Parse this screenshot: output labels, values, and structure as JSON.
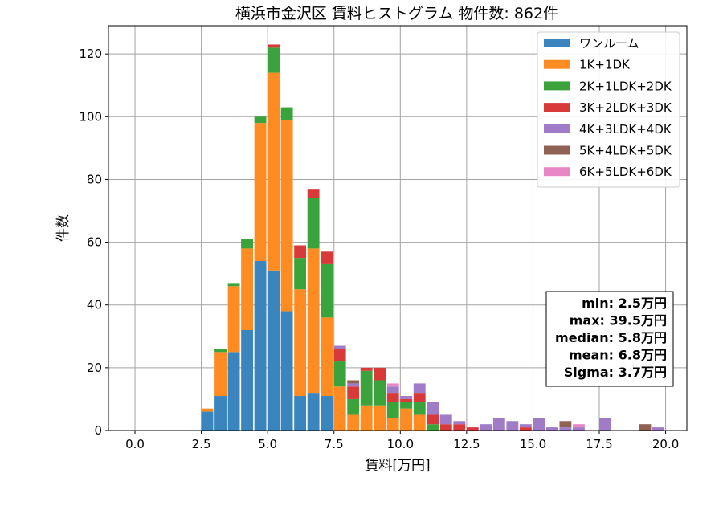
{
  "chart_data": {
    "type": "bar",
    "stacked": true,
    "title": "横浜市金沢区 賃料ヒストグラム 物件数: 862件",
    "xlabel": "賃料[万円]",
    "ylabel": "件数",
    "xlim": [
      -1.0,
      20.8
    ],
    "ylim": [
      0,
      129
    ],
    "xticks": [
      "0.0",
      "2.5",
      "5.0",
      "7.5",
      "10.0",
      "12.5",
      "15.0",
      "17.5",
      "20.0"
    ],
    "xtick_values": [
      0,
      2.5,
      5,
      7.5,
      10,
      12.5,
      15,
      17.5,
      20
    ],
    "yticks": [
      "0",
      "20",
      "40",
      "60",
      "80",
      "100",
      "120"
    ],
    "ytick_values": [
      0,
      20,
      40,
      60,
      80,
      100,
      120
    ],
    "grid": true,
    "legend_position": "top-right",
    "bin_width": 0.5,
    "x": [
      2.5,
      3.0,
      3.5,
      4.0,
      4.5,
      5.0,
      5.5,
      6.0,
      6.5,
      7.0,
      7.5,
      8.0,
      8.5,
      9.0,
      9.5,
      10.0,
      10.5,
      11.0,
      11.5,
      12.0,
      12.5,
      13.0,
      13.5,
      14.0,
      14.5,
      15.0,
      15.5,
      16.0,
      16.5,
      17.0,
      17.5,
      18.0,
      18.5,
      19.0,
      19.5
    ],
    "series": [
      {
        "name": "ワンルーム",
        "color": "#3a85bd",
        "values": [
          6,
          11,
          25,
          32,
          54,
          51,
          38,
          11,
          12,
          11,
          0,
          0,
          0,
          0,
          0,
          0,
          0,
          0,
          0,
          0,
          0,
          0,
          0,
          0,
          0,
          0,
          0,
          0,
          0,
          0,
          0,
          0,
          0,
          0,
          0
        ]
      },
      {
        "name": "1K+1DK",
        "color": "#ff8c23",
        "values": [
          1,
          14,
          21,
          26,
          44,
          63,
          61,
          34,
          46,
          25,
          14,
          5,
          8,
          8,
          4,
          7,
          5,
          0,
          0,
          0,
          0,
          0,
          0,
          0,
          0,
          0,
          0,
          0,
          0,
          0,
          0,
          0,
          0,
          0,
          0
        ]
      },
      {
        "name": "2K+1LDK+2DK",
        "color": "#3ba33b",
        "values": [
          0,
          1,
          1,
          3,
          2,
          8,
          4,
          10,
          16,
          17,
          8,
          5,
          11,
          8,
          5,
          2,
          4,
          2,
          0,
          0,
          0,
          0,
          0,
          0,
          0,
          0,
          0,
          0,
          0,
          0,
          0,
          0,
          0,
          0,
          0
        ]
      },
      {
        "name": "3K+2LDK+3DK",
        "color": "#d83a3a",
        "values": [
          0,
          0,
          0,
          0,
          0,
          1,
          0,
          4,
          3,
          4,
          4,
          4,
          1,
          4,
          3,
          1,
          3,
          3,
          2,
          2,
          1,
          0,
          0,
          0,
          1,
          0,
          0,
          0,
          0,
          0,
          0,
          0,
          0,
          0,
          0
        ]
      },
      {
        "name": "4K+3LDK+4DK",
        "color": "#a07bc8",
        "values": [
          0,
          0,
          0,
          0,
          0,
          0,
          0,
          0,
          0,
          0,
          1,
          1,
          0,
          0,
          2,
          1,
          3,
          4,
          3,
          1,
          0,
          2,
          4,
          3,
          1,
          4,
          1,
          1,
          1,
          0,
          4,
          0,
          0,
          0,
          1
        ]
      },
      {
        "name": "5K+4LDK+5DK",
        "color": "#8f6255",
        "values": [
          0,
          0,
          0,
          0,
          0,
          0,
          0,
          0,
          0,
          0,
          0,
          1,
          0,
          0,
          0,
          0,
          0,
          0,
          0,
          0,
          0,
          0,
          0,
          0,
          0,
          0,
          0,
          2,
          0,
          0,
          0,
          0,
          0,
          2,
          0
        ]
      },
      {
        "name": "6K+5LDK+6DK",
        "color": "#e986c6",
        "values": [
          0,
          0,
          0,
          0,
          0,
          0,
          0,
          0,
          0,
          0,
          0,
          0,
          0,
          0,
          1,
          0,
          0,
          0,
          0,
          0,
          0,
          0,
          0,
          0,
          0,
          0,
          0,
          0,
          1,
          0,
          0,
          0,
          0,
          0,
          0
        ]
      }
    ],
    "stats_box": {
      "position": "bottom-right",
      "lines": [
        "min: 2.5万円",
        "max: 39.5万円",
        "median: 5.8万円",
        "mean: 6.8万円",
        "Sigma: 3.7万円"
      ]
    }
  }
}
